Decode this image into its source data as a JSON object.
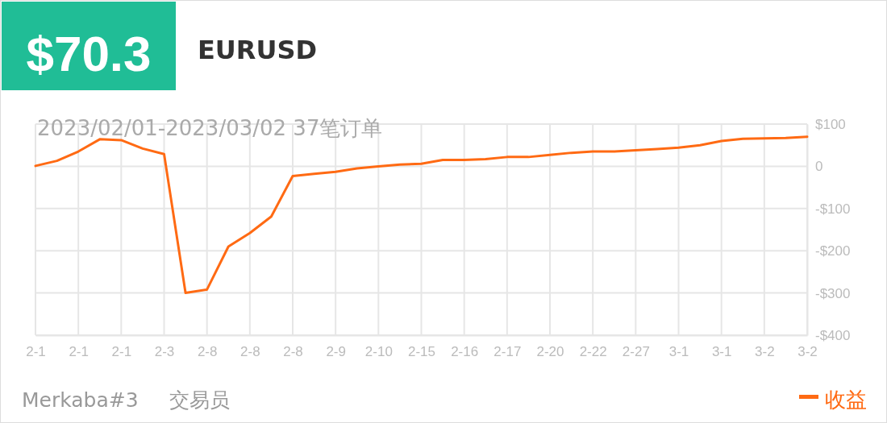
{
  "chart_data": {
    "type": "line",
    "title": "EURUSD",
    "subtitle": "2023/02/01-2023/03/02 37笔订单",
    "annotations": [
      "$70.3",
      "Merkaba#3",
      "交易员"
    ],
    "categories": [
      "2-1",
      null,
      "2-1",
      null,
      "2-1",
      null,
      "2-3",
      null,
      "2-8",
      null,
      "2-8",
      null,
      "2-8",
      null,
      "2-9",
      null,
      "2-10",
      null,
      "2-15",
      null,
      "2-16",
      null,
      "2-17",
      null,
      "2-20",
      null,
      "2-22",
      null,
      "2-27",
      null,
      "3-1",
      null,
      "3-1",
      null,
      "3-2",
      null,
      "3-2"
    ],
    "series": [
      {
        "name": "收益",
        "color": "#ff6a13",
        "values": [
          1,
          13,
          35,
          64,
          62,
          42,
          29,
          -300,
          -292,
          -190,
          -158,
          -119,
          -23,
          -18,
          -13,
          -5,
          0,
          4,
          6,
          15,
          15,
          17,
          22,
          22,
          27,
          32,
          35,
          35,
          38,
          41,
          44,
          50,
          60,
          65,
          66,
          67,
          70
        ]
      }
    ],
    "ylim": [
      -400,
      100
    ],
    "yticks": [
      {
        "value": 100,
        "label": "$100"
      },
      0,
      {
        "value": -100,
        "label": "-$100"
      },
      {
        "value": -200,
        "label": "-$200"
      },
      {
        "value": -300,
        "label": "-$300"
      },
      {
        "value": -400,
        "label": "-$400"
      }
    ],
    "grid": true,
    "legend": "bottom right",
    "marker": "none",
    "line_style": "solid"
  }
}
